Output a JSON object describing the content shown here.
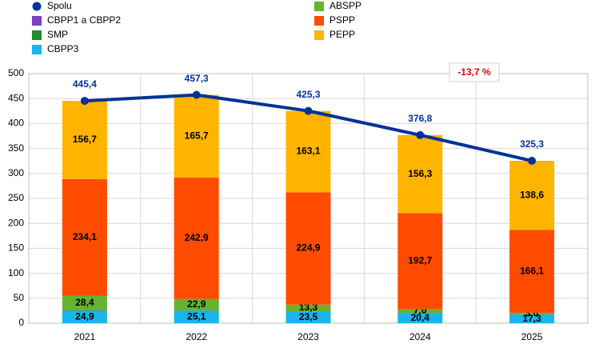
{
  "chart_data": {
    "type": "bar",
    "categories": [
      "2021",
      "2022",
      "2023",
      "2024",
      "2025"
    ],
    "series": [
      {
        "name": "Spolu",
        "type": "line",
        "color": "#003299",
        "values": [
          445.4,
          457.3,
          425.3,
          376.8,
          325.3
        ],
        "value_labels": [
          "445,4",
          "457,3",
          "425,3",
          "376,8",
          "325,3"
        ]
      },
      {
        "name": "CBPP1 a CBPP2",
        "color": "#7b3fc4",
        "values": [
          0.4,
          0.2,
          0.1,
          0.1,
          0.1
        ]
      },
      {
        "name": "SMP",
        "color": "#1e8c2f",
        "values": [
          0.9,
          0.5,
          0.4,
          0.3,
          0.2
        ]
      },
      {
        "name": "CBPP3",
        "color": "#1ab4ea",
        "values": [
          24.9,
          25.1,
          23.5,
          20.4,
          17.3
        ],
        "value_labels": [
          "24,9",
          "25,1",
          "23,5",
          "20,4",
          "17,3"
        ]
      },
      {
        "name": "ABSPP",
        "color": "#65b32e",
        "values": [
          28.4,
          22.9,
          13.3,
          7.0,
          3.0
        ],
        "value_labels": [
          "28,4",
          "22,9",
          "13,3",
          "7,0",
          "3,0"
        ]
      },
      {
        "name": "PSPP",
        "color": "#ff4b00",
        "values": [
          234.1,
          242.9,
          224.9,
          192.7,
          166.1
        ],
        "value_labels": [
          "234,1",
          "242,9",
          "224,9",
          "192,7",
          "166,1"
        ]
      },
      {
        "name": "PEPP",
        "color": "#ffb400",
        "values": [
          156.7,
          165.7,
          163.1,
          156.3,
          138.6
        ],
        "value_labels": [
          "156,7",
          "165,7",
          "163,1",
          "156,3",
          "138,6"
        ]
      }
    ],
    "annotation": "-13,7 %",
    "ylim": [
      0,
      500
    ],
    "yticks": [
      0,
      50,
      100,
      150,
      200,
      250,
      300,
      350,
      400,
      450,
      500
    ],
    "grid": true
  }
}
